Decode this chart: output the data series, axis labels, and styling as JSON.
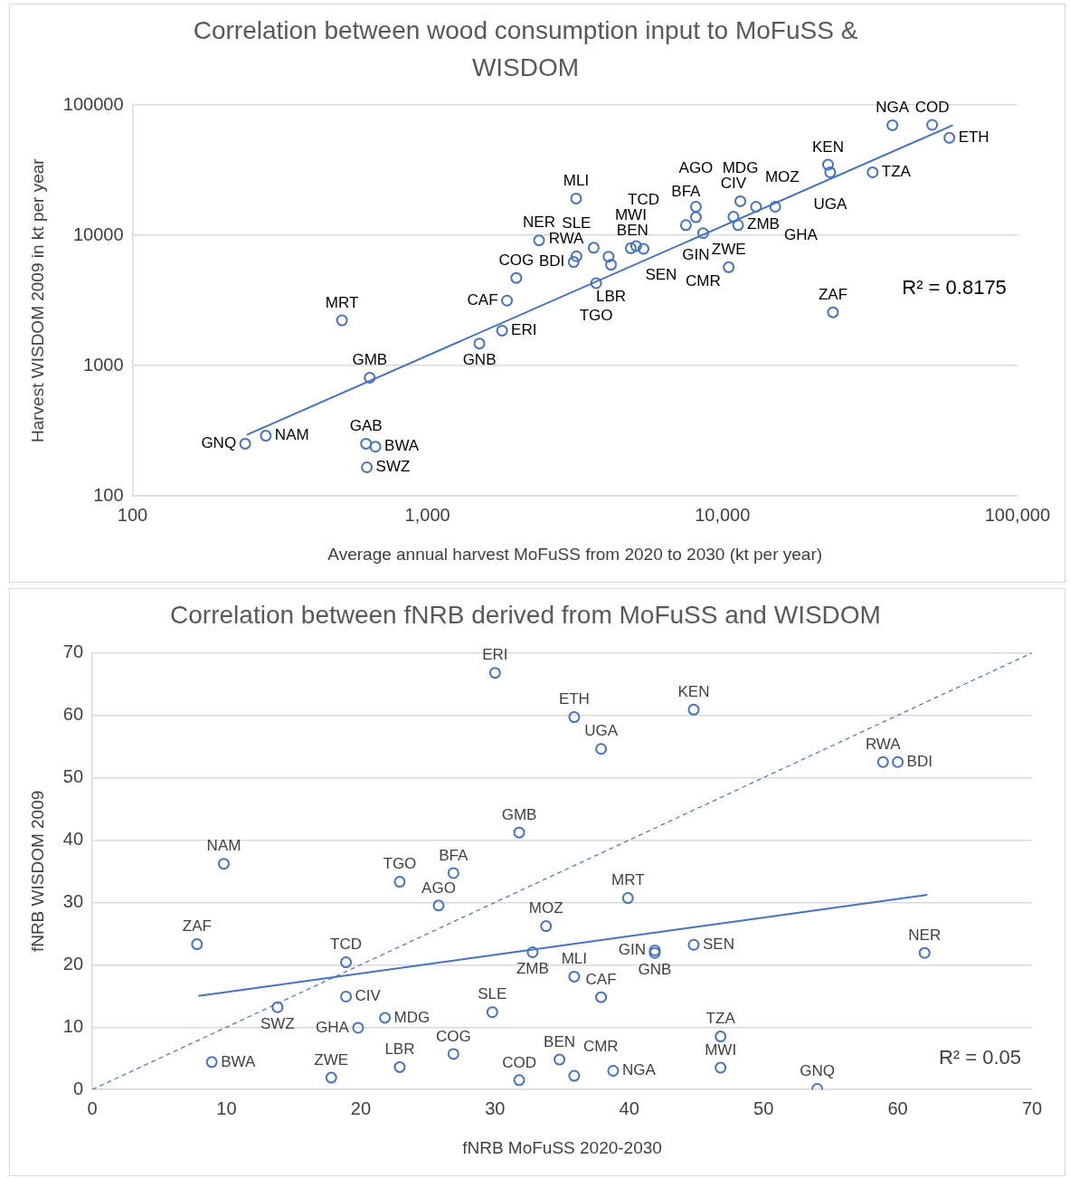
{
  "chart_data": [
    {
      "type": "scatter",
      "title": "Correlation between wood consumption input to MoFuSS & WISDOM",
      "xlabel": "Average annual harvest MoFuSS from 2020 to 2030 (kt per year)",
      "ylabel": "Harvest WISDOM 2009 in kt per year",
      "log": "xy",
      "grid": "y",
      "xlim": [
        100,
        100000
      ],
      "ylim": [
        100,
        100000
      ],
      "xticks": [
        100,
        {
          "value": 1000,
          "label": "1,000"
        },
        {
          "value": 10000,
          "label": "10,000"
        },
        {
          "value": 100000,
          "label": "100,000"
        }
      ],
      "yticks": [
        100,
        1000,
        10000,
        100000
      ],
      "series": [
        {
          "type": "scatter",
          "marker": "circle",
          "color": "#4472c4",
          "x": [
            241,
            283,
            513,
            637,
            619,
            666,
            623,
            1500,
            1790,
            1860,
            2000,
            2390,
            3190,
            3200,
            3130,
            3660,
            4110,
            4190,
            3730,
            4890,
            5100,
            5400,
            7520,
            8130,
            8130,
            8600,
            10900,
            11300,
            11500,
            13000,
            15100,
            10500,
            22800,
            23200,
            32300,
            23700,
            37700,
            51400,
            58800
          ],
          "values": [
            252,
            290,
            2230,
            810,
            252,
            239,
            166,
            1480,
            1860,
            3160,
            4720,
            9160,
            19200,
            6920,
            6250,
            8040,
            6870,
            5960,
            4300,
            7980,
            8280,
            7890,
            12000,
            13800,
            16600,
            10400,
            13900,
            12000,
            18300,
            16600,
            16600,
            5700,
            34900,
            30500,
            30500,
            2570,
            70100,
            70600,
            56100
          ]
        },
        {
          "type": "line",
          "color": "#4472c4",
          "line_style": "solid",
          "x": [
            244,
            60400
          ],
          "values": [
            295,
            70100
          ]
        }
      ],
      "annotations": [
        {
          "text": "GNQ",
          "x": 241,
          "y": 252
        },
        {
          "text": "NAM",
          "x": 283,
          "y": 290
        },
        {
          "text": "MRT",
          "x": 513,
          "y": 2230
        },
        {
          "text": "GMB",
          "x": 637,
          "y": 810
        },
        {
          "text": "GAB",
          "x": 619,
          "y": 252
        },
        {
          "text": "BWA",
          "x": 666,
          "y": 239
        },
        {
          "text": "SWZ",
          "x": 623,
          "y": 166
        },
        {
          "text": "GNB",
          "x": 1500,
          "y": 1480
        },
        {
          "text": "ERI",
          "x": 1790,
          "y": 1860
        },
        {
          "text": "CAF",
          "x": 1860,
          "y": 3160
        },
        {
          "text": "COG",
          "x": 2000,
          "y": 4720
        },
        {
          "text": "NER",
          "x": 2390,
          "y": 9160
        },
        {
          "text": "MLI",
          "x": 3190,
          "y": 19200
        },
        {
          "text": "SLE",
          "x": 3200,
          "y": 6920
        },
        {
          "text": "BDI",
          "x": 3130,
          "y": 6250
        },
        {
          "text": "BEN",
          "x": 3660,
          "y": 8040
        },
        {
          "text": "RWA",
          "x": 4110,
          "y": 6870
        },
        {
          "text": "LBR",
          "x": 4190,
          "y": 5960
        },
        {
          "text": "TGO",
          "x": 3730,
          "y": 4300
        },
        {
          "text": "MWI",
          "x": 4890,
          "y": 7980
        },
        {
          "text": "SEN",
          "x": 5100,
          "y": 8280
        },
        {
          "text": "TCD",
          "x": 5400,
          "y": 7890
        },
        {
          "text": "BFA",
          "x": 7520,
          "y": 12000
        },
        {
          "text": "AGO",
          "x": 8130,
          "y": 13800
        },
        {
          "text": "GIN",
          "x": 8130,
          "y": 16600
        },
        {
          "text": "CMR",
          "x": 8600,
          "y": 10400
        },
        {
          "text": "CIV",
          "x": 10900,
          "y": 13900
        },
        {
          "text": "ZMB",
          "x": 11300,
          "y": 12000
        },
        {
          "text": "MDG",
          "x": 11500,
          "y": 18300
        },
        {
          "text": "MOZ",
          "x": 13000,
          "y": 16600
        },
        {
          "text": "GHA",
          "x": 15100,
          "y": 16600
        },
        {
          "text": "ZWE",
          "x": 10500,
          "y": 5700
        },
        {
          "text": "KEN",
          "x": 22800,
          "y": 34900
        },
        {
          "text": "UGA",
          "x": 23200,
          "y": 30500
        },
        {
          "text": "TZA",
          "x": 32300,
          "y": 30500
        },
        {
          "text": "ZAF",
          "x": 23700,
          "y": 2570
        },
        {
          "text": "NGA",
          "x": 37700,
          "y": 70100
        },
        {
          "text": "COD",
          "x": 51400,
          "y": 70600
        },
        {
          "text": "ETH",
          "x": 58800,
          "y": 56100
        },
        "R² = 0.8175"
      ]
    },
    {
      "type": "scatter",
      "title": "Correlation between fNRB derived from MoFuSS and WISDOM",
      "xlabel": "fNRB MoFuSS 2020-2030",
      "ylabel": "fNRB WISDOM 2009",
      "grid": "y",
      "xlim": [
        0,
        70
      ],
      "ylim": [
        0,
        70
      ],
      "xticks": [
        0,
        10,
        20,
        30,
        40,
        50,
        60,
        70
      ],
      "yticks": [
        0,
        10,
        20,
        30,
        40,
        50,
        60,
        70
      ],
      "series": [
        {
          "type": "scatter",
          "marker": "circle",
          "color": "#4472c4",
          "x": [
            30,
            9.8,
            22.9,
            26.9,
            25.8,
            31.8,
            7.8,
            18.9,
            18.9,
            19.8,
            21.8,
            13.8,
            29.8,
            8.9,
            17.8,
            22.9,
            26.9,
            31.8,
            32.8,
            33.8,
            35.9,
            37.9,
            44.8,
            58.9,
            60,
            39.9,
            35.9,
            37.9,
            41.9,
            41.9,
            44.8,
            62,
            46.8,
            46.8,
            54,
            34.8,
            35.9,
            38.8
          ],
          "values": [
            66.8,
            36.2,
            33.3,
            34.7,
            29.5,
            41.2,
            23.3,
            20.4,
            14.9,
            9.9,
            11.5,
            13.2,
            12.4,
            4.4,
            1.9,
            3.6,
            5.7,
            1.5,
            22.0,
            26.2,
            59.7,
            54.6,
            60.9,
            52.5,
            52.5,
            30.7,
            18.1,
            14.8,
            22.3,
            21.9,
            23.2,
            21.9,
            8.5,
            3.5,
            0.1,
            4.8,
            2.2,
            3.0
          ]
        },
        {
          "type": "line",
          "color": "#4472c4",
          "line_style": "solid",
          "x": [
            7.9,
            62.2
          ],
          "values": [
            15,
            31.2
          ]
        },
        {
          "type": "line",
          "color": "#4472c4",
          "line_style": "dashed",
          "x": [
            0,
            70
          ],
          "values": [
            0,
            70
          ]
        }
      ],
      "annotations": [
        {
          "text": "ERI",
          "x": 30,
          "y": 66.8
        },
        {
          "text": "NAM",
          "x": 9.8,
          "y": 36.2
        },
        {
          "text": "TGO",
          "x": 22.9,
          "y": 33.3
        },
        {
          "text": "BFA",
          "x": 26.9,
          "y": 34.7
        },
        {
          "text": "AGO",
          "x": 25.8,
          "y": 29.5
        },
        {
          "text": "GMB",
          "x": 31.8,
          "y": 41.2
        },
        {
          "text": "ZAF",
          "x": 7.8,
          "y": 23.3
        },
        {
          "text": "TCD",
          "x": 18.9,
          "y": 20.4
        },
        {
          "text": "CIV",
          "x": 18.9,
          "y": 14.9
        },
        {
          "text": "GHA",
          "x": 19.8,
          "y": 9.9
        },
        {
          "text": "MDG",
          "x": 21.8,
          "y": 11.5
        },
        {
          "text": "SWZ",
          "x": 13.8,
          "y": 13.2
        },
        {
          "text": "SLE",
          "x": 29.8,
          "y": 12.4
        },
        {
          "text": "BWA",
          "x": 8.9,
          "y": 4.4
        },
        {
          "text": "ZWE",
          "x": 17.8,
          "y": 1.9
        },
        {
          "text": "LBR",
          "x": 22.9,
          "y": 3.6
        },
        {
          "text": "COG",
          "x": 26.9,
          "y": 5.7
        },
        {
          "text": "COD",
          "x": 31.8,
          "y": 1.5
        },
        {
          "text": "ZMB",
          "x": 32.8,
          "y": 22.0
        },
        {
          "text": "MOZ",
          "x": 33.8,
          "y": 26.2
        },
        {
          "text": "ETH",
          "x": 35.9,
          "y": 59.7
        },
        {
          "text": "UGA",
          "x": 37.9,
          "y": 54.6
        },
        {
          "text": "KEN",
          "x": 44.8,
          "y": 60.9
        },
        {
          "text": "RWA",
          "x": 58.9,
          "y": 52.5
        },
        {
          "text": "BDI",
          "x": 60,
          "y": 52.5
        },
        {
          "text": "MRT",
          "x": 39.9,
          "y": 30.7
        },
        {
          "text": "MLI",
          "x": 35.9,
          "y": 18.1
        },
        {
          "text": "CAF",
          "x": 37.9,
          "y": 14.8
        },
        {
          "text": "GIN",
          "x": 41.9,
          "y": 22.3
        },
        {
          "text": "GNB",
          "x": 41.9,
          "y": 21.9
        },
        {
          "text": "SEN",
          "x": 44.8,
          "y": 23.2
        },
        {
          "text": "NER",
          "x": 62,
          "y": 21.9
        },
        {
          "text": "TZA",
          "x": 46.8,
          "y": 8.5
        },
        {
          "text": "MWI",
          "x": 46.8,
          "y": 3.5
        },
        {
          "text": "GNQ",
          "x": 54,
          "y": 0.1
        },
        {
          "text": "BEN",
          "x": 34.8,
          "y": 4.8
        },
        {
          "text": "CMR",
          "x": 35.9,
          "y": 2.2
        },
        {
          "text": "NGA",
          "x": 38.8,
          "y": 3.0
        },
        "R² = 0.05"
      ]
    }
  ]
}
